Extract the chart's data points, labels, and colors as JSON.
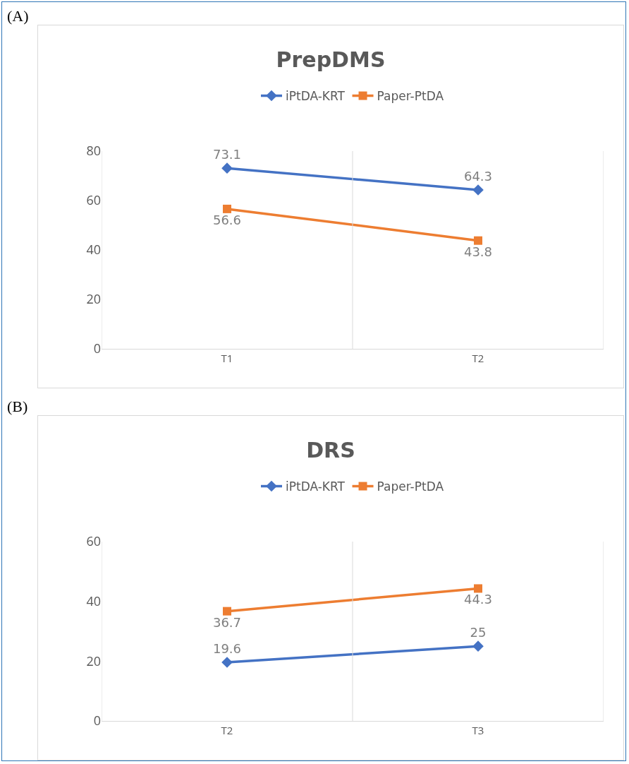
{
  "chart_data": [
    {
      "type": "line",
      "title": "PrepDMS",
      "annotations": [
        "(A)"
      ],
      "categories": [
        "T1",
        "T2"
      ],
      "series": [
        {
          "name": "iPtDA-KRT",
          "color": "#4472c4",
          "marker": "diamond",
          "values": [
            73.1,
            64.3
          ]
        },
        {
          "name": "Paper-PtDA",
          "color": "#ed7d31",
          "marker": "square",
          "values": [
            56.6,
            43.8
          ]
        }
      ],
      "ylim": [
        0,
        80
      ],
      "yticks": [
        0,
        20,
        40,
        60,
        80
      ],
      "grid": "x",
      "legend": "top",
      "data_labels": true
    },
    {
      "type": "line",
      "title": "DRS",
      "annotations": [
        "(B)"
      ],
      "categories": [
        "T2",
        "T3"
      ],
      "series": [
        {
          "name": "iPtDA-KRT",
          "color": "#4472c4",
          "marker": "diamond",
          "values": [
            19.6,
            25
          ]
        },
        {
          "name": "Paper-PtDA",
          "color": "#ed7d31",
          "marker": "square",
          "values": [
            36.7,
            44.3
          ]
        }
      ],
      "ylim": [
        0,
        60
      ],
      "yticks": [
        0,
        20,
        40,
        60
      ],
      "grid": "x",
      "legend": "top",
      "data_labels": true
    }
  ]
}
